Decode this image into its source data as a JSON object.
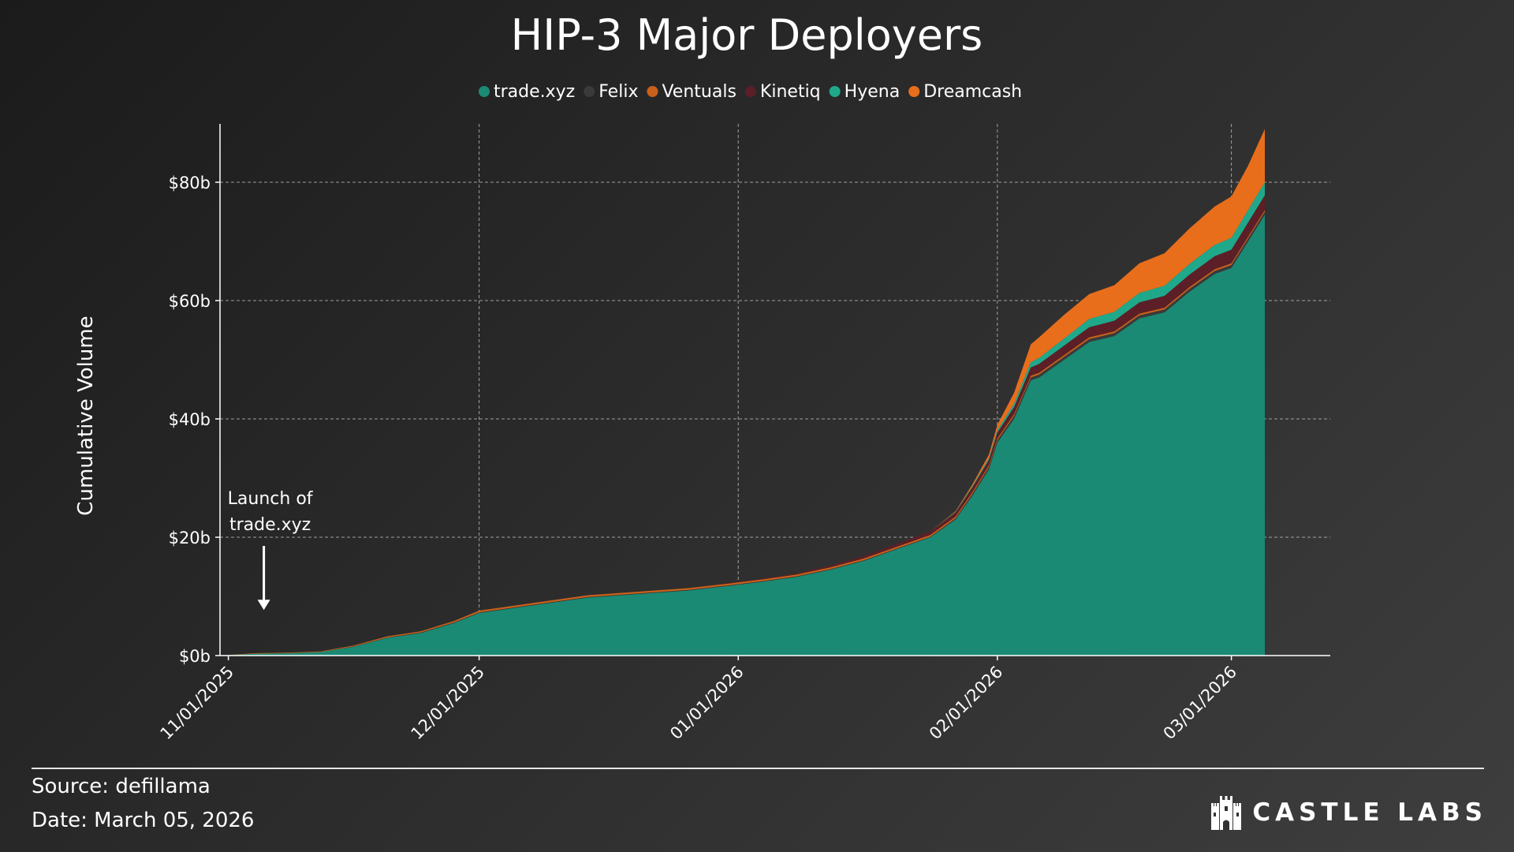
{
  "chart_data": {
    "type": "area",
    "stacked": true,
    "title": "HIP-3 Major Deployers",
    "ylabel": "Cumulative Volume",
    "xlabel": "",
    "x_start": "2025-10-31",
    "x_end": "2026-03-05",
    "ylim": [
      0,
      90
    ],
    "y_ticks": [
      0,
      20,
      40,
      60,
      80
    ],
    "y_tick_labels": [
      "$0b",
      "$20b",
      "$40b",
      "$60b",
      "$80b"
    ],
    "x_ticks": [
      "2025-11-01",
      "2025-12-01",
      "2026-01-01",
      "2026-02-01",
      "2026-03-01"
    ],
    "x_tick_labels": [
      "11/01/2025",
      "12/01/2025",
      "01/01/2026",
      "02/01/2026",
      "03/01/2026"
    ],
    "grid": true,
    "legend_position": "top-center",
    "x": [
      "2025-10-31",
      "2025-11-04",
      "2025-11-08",
      "2025-11-12",
      "2025-11-16",
      "2025-11-20",
      "2025-11-24",
      "2025-11-28",
      "2025-12-01",
      "2025-12-04",
      "2025-12-06",
      "2025-12-10",
      "2025-12-14",
      "2025-12-18",
      "2025-12-22",
      "2025-12-26",
      "2025-12-31",
      "2026-01-04",
      "2026-01-08",
      "2026-01-12",
      "2026-01-16",
      "2026-01-20",
      "2026-01-24",
      "2026-01-27",
      "2026-01-29",
      "2026-01-31",
      "2026-02-01",
      "2026-02-03",
      "2026-02-05",
      "2026-02-06",
      "2026-02-09",
      "2026-02-12",
      "2026-02-15",
      "2026-02-18",
      "2026-02-21",
      "2026-02-24",
      "2026-02-27",
      "2026-03-01",
      "2026-03-03",
      "2026-03-05"
    ],
    "series": [
      {
        "name": "trade.xyz",
        "color": "#1a8a74",
        "values": [
          0,
          0.3,
          0.4,
          0.6,
          1.5,
          3,
          3.8,
          5.5,
          7.2,
          7.8,
          8.2,
          9,
          9.8,
          10.2,
          10.6,
          11,
          11.8,
          12.5,
          13.3,
          14.5,
          16,
          18,
          20,
          23,
          27,
          31.5,
          36,
          40,
          46.5,
          47,
          50,
          53,
          54,
          57,
          58,
          61.5,
          64.5,
          65.5,
          70,
          74.5
        ]
      },
      {
        "name": "Felix",
        "color": "#3a3a3a",
        "values": [
          0,
          0,
          0,
          0,
          0.05,
          0.05,
          0.1,
          0.1,
          0.1,
          0.1,
          0.1,
          0.1,
          0.1,
          0.1,
          0.1,
          0.1,
          0.1,
          0.1,
          0.1,
          0.1,
          0.1,
          0.1,
          0.1,
          0.2,
          0.3,
          0.4,
          0.4,
          0.5,
          0.5,
          0.5,
          0.5,
          0.5,
          0.5,
          0.5,
          0.5,
          0.5,
          0.5,
          0.5,
          0.5,
          0.5
        ]
      },
      {
        "name": "Ventuals",
        "color": "#c9611a",
        "values": [
          0,
          0.1,
          0.1,
          0.1,
          0.15,
          0.2,
          0.2,
          0.25,
          0.3,
          0.3,
          0.3,
          0.3,
          0.3,
          0.3,
          0.3,
          0.3,
          0.3,
          0.3,
          0.3,
          0.3,
          0.3,
          0.3,
          0.3,
          0.3,
          0.3,
          0.3,
          0.3,
          0.3,
          0.3,
          0.3,
          0.3,
          0.3,
          0.3,
          0.3,
          0.3,
          0.3,
          0.3,
          0.3,
          0.3,
          0.3
        ]
      },
      {
        "name": "Kinetiq",
        "color": "#5c1f27",
        "values": [
          0,
          0,
          0,
          0,
          0,
          0,
          0,
          0,
          0,
          0,
          0,
          0,
          0,
          0,
          0,
          0,
          0.1,
          0.1,
          0.2,
          0.3,
          0.4,
          0.5,
          0.6,
          0.7,
          0.8,
          0.9,
          1.0,
          1.2,
          1.4,
          1.5,
          1.6,
          1.7,
          1.8,
          1.9,
          2.0,
          2.1,
          2.2,
          2.3,
          2.4,
          2.5
        ]
      },
      {
        "name": "Hyena",
        "color": "#20a88a",
        "values": [
          0,
          0,
          0,
          0,
          0,
          0,
          0,
          0,
          0,
          0,
          0,
          0,
          0,
          0,
          0,
          0,
          0,
          0,
          0,
          0,
          0,
          0,
          0,
          0.1,
          0.2,
          0.3,
          0.4,
          0.6,
          0.9,
          1.0,
          1.2,
          1.4,
          1.5,
          1.6,
          1.7,
          1.8,
          1.9,
          2.0,
          2.1,
          2.2
        ]
      },
      {
        "name": "Dreamcash",
        "color": "#e86e1c",
        "values": [
          0,
          0,
          0,
          0,
          0,
          0,
          0,
          0,
          0,
          0,
          0,
          0,
          0,
          0,
          0,
          0,
          0,
          0,
          0,
          0,
          0,
          0,
          0,
          0.1,
          0.3,
          0.6,
          0.9,
          1.8,
          3.0,
          3.5,
          4.0,
          4.2,
          4.5,
          5.0,
          5.5,
          6.0,
          6.5,
          7.0,
          7.5,
          9.0
        ]
      }
    ],
    "annotation": {
      "text_lines": [
        "Launch of",
        "trade.xyz"
      ],
      "x": "2025-11-06",
      "y": 2.5
    }
  },
  "footer": {
    "source": "Source: defillama",
    "date": "Date: March 05, 2026",
    "brand": "CASTLE LABS",
    "brand_icon": "castle-icon"
  },
  "colors": {
    "grid": "#bdbdbd",
    "axis": "#ffffff",
    "footer_rule": "#e6e6e6"
  }
}
